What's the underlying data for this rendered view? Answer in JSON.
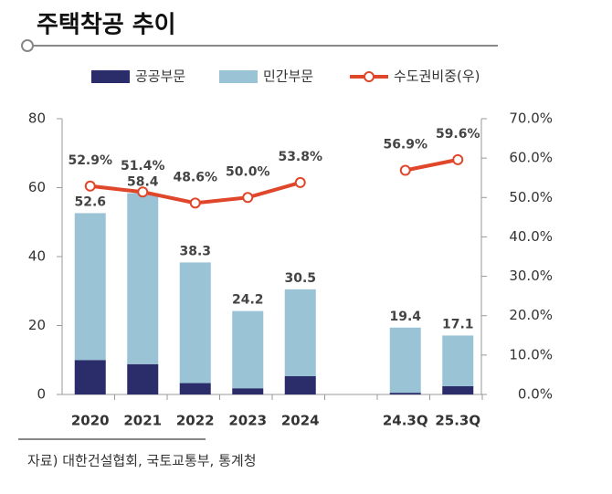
{
  "chart_data": {
    "type": "bar",
    "title": "주택착공 추이",
    "source": "자료) 대한건설협회, 국토교통부, 통계청",
    "categories": [
      "2020",
      "2021",
      "2022",
      "2023",
      "2024",
      null,
      "24.3Q",
      "25.3Q"
    ],
    "series": [
      {
        "name": "공공부문",
        "color": "#2b2d6b",
        "values": [
          10,
          8.8,
          3.3,
          1.8,
          5.3,
          null,
          0.5,
          2.4
        ]
      },
      {
        "name": "민간부문",
        "color": "#9ac3d6",
        "values": [
          42.6,
          49.6,
          35.0,
          22.4,
          25.2,
          null,
          18.9,
          14.7
        ]
      },
      {
        "name": "수도권비중(우)",
        "color": "#e0462a",
        "axis": "y2",
        "type": "line",
        "values": [
          52.9,
          51.4,
          48.6,
          50.0,
          53.8,
          null,
          56.9,
          59.6
        ],
        "value_labels": [
          "52.9%",
          "51.4%",
          "48.6%",
          "50.0%",
          "53.8%",
          null,
          "56.9%",
          "59.6%"
        ]
      }
    ],
    "totals": [
      52.6,
      58.4,
      38.3,
      24.2,
      30.5,
      null,
      19.4,
      17.1
    ],
    "ylim": [
      0,
      80
    ],
    "yticks": [
      0,
      20,
      40,
      60,
      80
    ],
    "y2lim": [
      0,
      70
    ],
    "y2ticks": [
      {
        "value": 0,
        "label": "0.0%"
      },
      {
        "value": 10,
        "label": "10.0%"
      },
      {
        "value": 20,
        "label": "20.0%"
      },
      {
        "value": 30,
        "label": "30.0%"
      },
      {
        "value": 40,
        "label": "40.0%"
      },
      {
        "value": 50,
        "label": "50.0%"
      },
      {
        "value": 60,
        "label": "60.0%"
      },
      {
        "value": 70,
        "label": "70.0%"
      }
    ]
  }
}
